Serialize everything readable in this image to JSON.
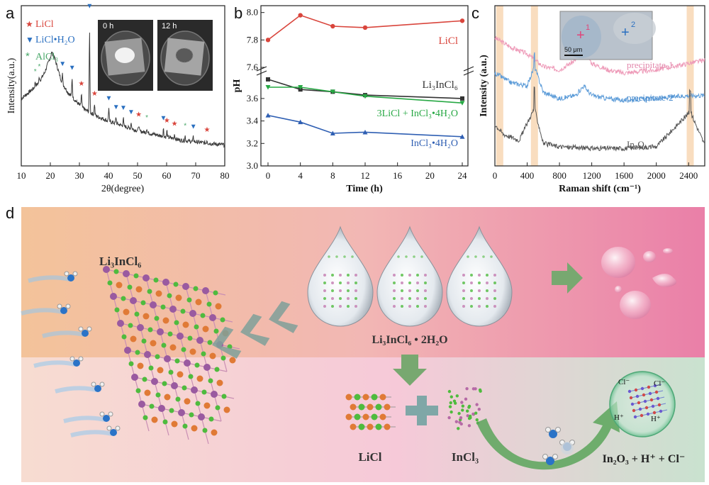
{
  "panels": {
    "a": "a",
    "b": "b",
    "c": "c",
    "d": "d"
  },
  "colors": {
    "licl_red": "#d9453c",
    "li3incl6_black": "#333333",
    "mix_green": "#27a844",
    "incl3_blue": "#2f5fb3",
    "xrd_line": "#3a3a3a",
    "raman_pink": "#ee9ab8",
    "raman_blue": "#5b9bd8",
    "raman_gray": "#555555",
    "tick_marker_blue": "#2a6fc0",
    "asterisk_green": "#4aa86a"
  },
  "chart_data": [
    {
      "type": "line",
      "panel": "a",
      "xlabel": "2θ(degree)",
      "ylabel": "Intensity(a.u.)",
      "xlim": [
        10,
        80
      ],
      "xticks": [
        "10",
        "20",
        "30",
        "40",
        "50",
        "60",
        "70",
        "80"
      ],
      "legend": [
        {
          "marker": "★",
          "name": "LiCl"
        },
        {
          "marker": "▼",
          "name": "LiCl•H₂O"
        },
        {
          "marker": "*",
          "name": "AlCl₃"
        }
      ],
      "inset_labels": [
        "0 h",
        "12 h"
      ],
      "peaks_2theta": [
        14.8,
        16.2,
        20.5,
        24.2,
        27.5,
        30.7,
        33.5,
        35.2,
        40.1,
        42.6,
        45.1,
        47.8,
        50.4,
        53.2,
        58.9,
        60.1,
        62.7,
        66.4,
        69.2,
        73.9
      ],
      "series": [
        {
          "name": "pattern",
          "x": [
            10,
            12,
            14,
            16,
            18,
            20,
            21,
            22,
            24,
            26,
            28,
            30,
            32,
            34,
            36,
            40,
            45,
            50,
            55,
            60,
            65,
            70,
            75,
            80
          ],
          "y": [
            0.42,
            0.45,
            0.48,
            0.52,
            0.58,
            0.68,
            0.7,
            0.64,
            0.52,
            0.46,
            0.42,
            0.38,
            0.35,
            0.33,
            0.31,
            0.28,
            0.25,
            0.22,
            0.2,
            0.18,
            0.16,
            0.15,
            0.14,
            0.13
          ]
        }
      ]
    },
    {
      "type": "line",
      "panel": "b",
      "xlabel": "Time (h)",
      "ylabel": "pH",
      "xlim": [
        0,
        24
      ],
      "xticks": [
        "0",
        "4",
        "8",
        "12",
        "16",
        "20",
        "24"
      ],
      "yticks_upper": [
        "7.6",
        "7.8",
        "8.0"
      ],
      "yticks_lower": [
        "3.0",
        "3.2",
        "3.4",
        "3.6"
      ],
      "series": [
        {
          "name": "LiCl",
          "x": [
            0,
            4,
            8,
            12,
            24
          ],
          "y": [
            7.8,
            7.98,
            7.9,
            7.89,
            7.94
          ]
        },
        {
          "name": "Li₃InCl₆",
          "x": [
            0,
            4,
            8,
            12,
            24
          ],
          "y": [
            3.77,
            3.68,
            3.66,
            3.63,
            3.6
          ]
        },
        {
          "name": "3LiCl + InCl₃•4H₂O",
          "x": [
            0,
            4,
            8,
            12,
            24
          ],
          "y": [
            3.7,
            3.7,
            3.66,
            3.62,
            3.56
          ]
        },
        {
          "name": "InCl₃•4H₂O",
          "x": [
            0,
            4,
            8,
            12,
            24
          ],
          "y": [
            3.45,
            3.39,
            3.29,
            3.3,
            3.26
          ]
        }
      ]
    },
    {
      "type": "line",
      "panel": "c",
      "xlabel": "Raman shift (cm⁻¹)",
      "ylabel": "Intensity (a.u.)",
      "xlim": [
        0,
        2600
      ],
      "xticks": [
        "0",
        "400",
        "800",
        "1200",
        "1600",
        "2000",
        "2400"
      ],
      "highlight_bands": [
        60,
        490,
        2420
      ],
      "inset_scale": "50 μm",
      "inset_marks": [
        "1",
        "2"
      ],
      "series": [
        {
          "name": "precipitate-1",
          "x": [
            0,
            200,
            400,
            600,
            800,
            1000,
            1100,
            1200,
            1400,
            1600,
            2000,
            2400,
            2600
          ],
          "y": [
            0.8,
            0.74,
            0.7,
            0.62,
            0.6,
            0.66,
            0.74,
            0.64,
            0.6,
            0.58,
            0.6,
            0.64,
            0.66
          ]
        },
        {
          "name": "precipitate-2",
          "x": [
            0,
            200,
            400,
            490,
            600,
            800,
            1000,
            1100,
            1200,
            1400,
            1600,
            2000,
            2400,
            2600
          ],
          "y": [
            0.58,
            0.52,
            0.5,
            0.62,
            0.46,
            0.42,
            0.44,
            0.5,
            0.44,
            0.42,
            0.41,
            0.42,
            0.44,
            0.44
          ]
        },
        {
          "name": "In₂O₃",
          "x": [
            0,
            100,
            300,
            490,
            600,
            800,
            1200,
            1600,
            2000,
            2420,
            2600
          ],
          "y": [
            0.26,
            0.2,
            0.16,
            0.36,
            0.14,
            0.12,
            0.11,
            0.11,
            0.12,
            0.34,
            0.13
          ]
        }
      ]
    }
  ],
  "scheme": {
    "li3incl6_label": "Li₃InCl₆",
    "hydrate_label": "Li₃InCl₆ • 2H₂O",
    "licl_label": "LiCl",
    "incl3_label": "InCl₃",
    "products_label": "In₂O₃ + H⁺ + Cl⁻",
    "ion_labels": [
      "Cl⁻",
      "Cl⁻",
      "H⁺",
      "H⁺"
    ]
  }
}
